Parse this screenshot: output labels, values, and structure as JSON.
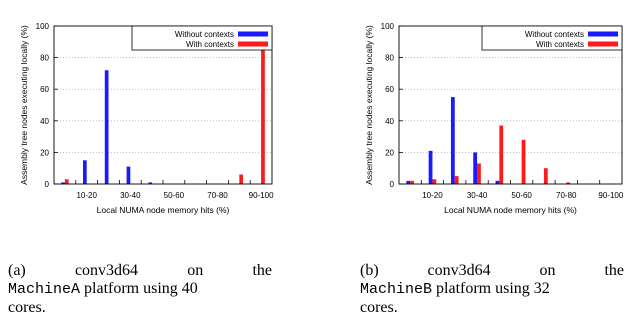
{
  "colors": {
    "without": "#1a1aff",
    "with": "#ff1a1a",
    "axis": "#000000",
    "grid": "#9a9a9a"
  },
  "chart_data": [
    {
      "type": "bar",
      "xlabel": "Local NUMA node memory hits (%)",
      "ylabel": "Assembly tree nodes executing locally (%)",
      "ylim": [
        0,
        100
      ],
      "yticks": [
        "0",
        "20",
        "40",
        "60",
        "80",
        "100"
      ],
      "xtick_labels": [
        "10-20",
        "30-40",
        "50-60",
        "70-80",
        "90-100"
      ],
      "grid": true,
      "legend_position": "top-right",
      "series": [
        {
          "name": "Without contexts",
          "values": [
            1,
            15,
            72,
            11,
            1,
            0,
            0,
            0,
            0,
            0
          ]
        },
        {
          "name": "With contexts",
          "values": [
            3,
            0,
            0,
            0,
            0,
            0,
            0,
            0,
            6,
            90
          ]
        }
      ]
    },
    {
      "type": "bar",
      "xlabel": "Local NUMA node memory hits (%)",
      "ylabel": "Assembly tree nodes executing locally (%)",
      "ylim": [
        0,
        100
      ],
      "yticks": [
        "0",
        "20",
        "40",
        "60",
        "80",
        "100"
      ],
      "xtick_labels": [
        "10-20",
        "30-40",
        "50-60",
        "70-80",
        "90-100"
      ],
      "grid": true,
      "legend_position": "top-right",
      "series": [
        {
          "name": "Without contexts",
          "values": [
            2,
            21,
            55,
            20,
            2,
            0,
            0,
            0,
            0,
            0
          ]
        },
        {
          "name": "With contexts",
          "values": [
            2,
            3,
            5,
            13,
            37,
            28,
            10,
            1,
            0,
            0
          ]
        }
      ]
    }
  ],
  "captions": [
    {
      "label": "(a)",
      "name": "conv3d64",
      "on": "on",
      "the": "the",
      "machine": "MachineA",
      "rest": "platform using 40",
      "end": "cores."
    },
    {
      "label": "(b)",
      "name": "conv3d64",
      "on": "on",
      "the": "the",
      "machine": "MachineB",
      "rest": "platform using 32",
      "end": "cores."
    }
  ]
}
